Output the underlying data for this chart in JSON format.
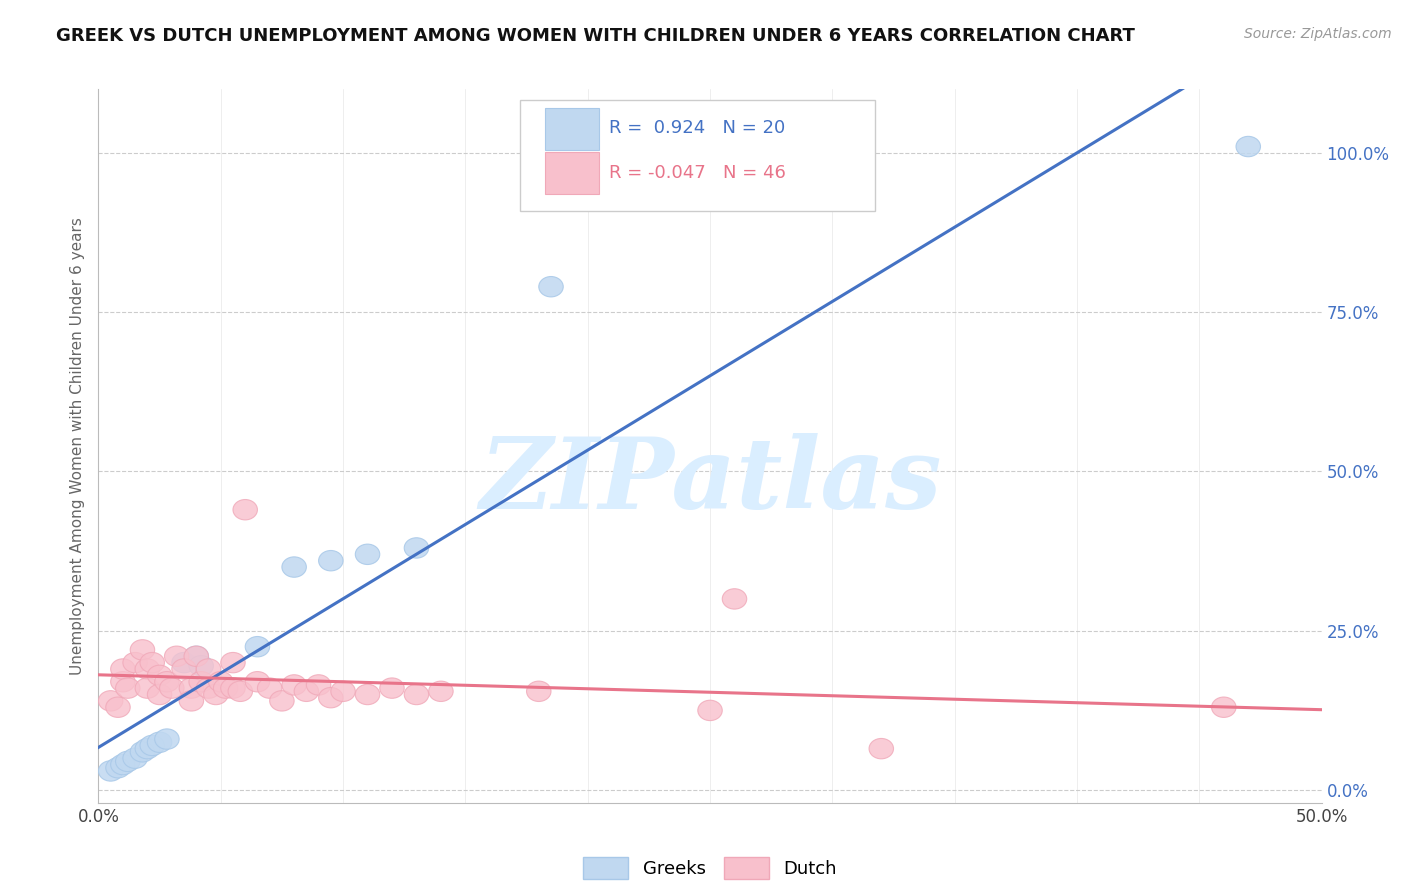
{
  "title": "GREEK VS DUTCH UNEMPLOYMENT AMONG WOMEN WITH CHILDREN UNDER 6 YEARS CORRELATION CHART",
  "source": "Source: ZipAtlas.com",
  "ylabel": "Unemployment Among Women with Children Under 6 years",
  "xlim": [
    0.0,
    0.5
  ],
  "ylim": [
    -0.02,
    1.1
  ],
  "xticks": [
    0.0,
    0.05,
    0.1,
    0.15,
    0.2,
    0.25,
    0.3,
    0.35,
    0.4,
    0.45,
    0.5
  ],
  "yticks": [
    0.0,
    0.25,
    0.5,
    0.75,
    1.0
  ],
  "ytick_labels": [
    "0.0%",
    "25.0%",
    "50.0%",
    "75.0%",
    "100.0%"
  ],
  "xtick_labels": [
    "0.0%",
    "",
    "",
    "",
    "",
    "",
    "",
    "",
    "",
    "",
    "50.0%"
  ],
  "greek_color": "#a8c8e8",
  "dutch_color": "#f0a8b8",
  "greek_face_color": "#c0d8f0",
  "dutch_face_color": "#f8c0cc",
  "greek_line_color": "#4472c4",
  "dutch_line_color": "#e8748a",
  "r_greek": 0.924,
  "n_greek": 20,
  "r_dutch": -0.047,
  "n_dutch": 46,
  "watermark": "ZIPatlas",
  "watermark_color": "#daeeff",
  "greek_points": [
    [
      0.005,
      0.03
    ],
    [
      0.008,
      0.035
    ],
    [
      0.01,
      0.04
    ],
    [
      0.012,
      0.045
    ],
    [
      0.015,
      0.05
    ],
    [
      0.018,
      0.06
    ],
    [
      0.02,
      0.065
    ],
    [
      0.022,
      0.07
    ],
    [
      0.025,
      0.075
    ],
    [
      0.028,
      0.08
    ],
    [
      0.035,
      0.2
    ],
    [
      0.04,
      0.21
    ],
    [
      0.042,
      0.195
    ],
    [
      0.065,
      0.225
    ],
    [
      0.08,
      0.35
    ],
    [
      0.095,
      0.36
    ],
    [
      0.11,
      0.37
    ],
    [
      0.13,
      0.38
    ],
    [
      0.185,
      0.79
    ],
    [
      0.47,
      1.01
    ]
  ],
  "dutch_points": [
    [
      0.005,
      0.14
    ],
    [
      0.008,
      0.13
    ],
    [
      0.01,
      0.17
    ],
    [
      0.01,
      0.19
    ],
    [
      0.012,
      0.16
    ],
    [
      0.015,
      0.2
    ],
    [
      0.018,
      0.22
    ],
    [
      0.02,
      0.19
    ],
    [
      0.02,
      0.16
    ],
    [
      0.022,
      0.2
    ],
    [
      0.025,
      0.18
    ],
    [
      0.025,
      0.15
    ],
    [
      0.028,
      0.17
    ],
    [
      0.03,
      0.16
    ],
    [
      0.032,
      0.21
    ],
    [
      0.035,
      0.19
    ],
    [
      0.038,
      0.16
    ],
    [
      0.038,
      0.14
    ],
    [
      0.04,
      0.21
    ],
    [
      0.042,
      0.17
    ],
    [
      0.045,
      0.19
    ],
    [
      0.045,
      0.16
    ],
    [
      0.048,
      0.15
    ],
    [
      0.05,
      0.17
    ],
    [
      0.052,
      0.16
    ],
    [
      0.055,
      0.2
    ],
    [
      0.055,
      0.16
    ],
    [
      0.058,
      0.155
    ],
    [
      0.06,
      0.44
    ],
    [
      0.065,
      0.17
    ],
    [
      0.07,
      0.16
    ],
    [
      0.075,
      0.14
    ],
    [
      0.08,
      0.165
    ],
    [
      0.085,
      0.155
    ],
    [
      0.09,
      0.165
    ],
    [
      0.095,
      0.145
    ],
    [
      0.1,
      0.155
    ],
    [
      0.11,
      0.15
    ],
    [
      0.12,
      0.16
    ],
    [
      0.13,
      0.15
    ],
    [
      0.14,
      0.155
    ],
    [
      0.18,
      0.155
    ],
    [
      0.25,
      0.125
    ],
    [
      0.26,
      0.3
    ],
    [
      0.32,
      0.065
    ],
    [
      0.46,
      0.13
    ]
  ]
}
